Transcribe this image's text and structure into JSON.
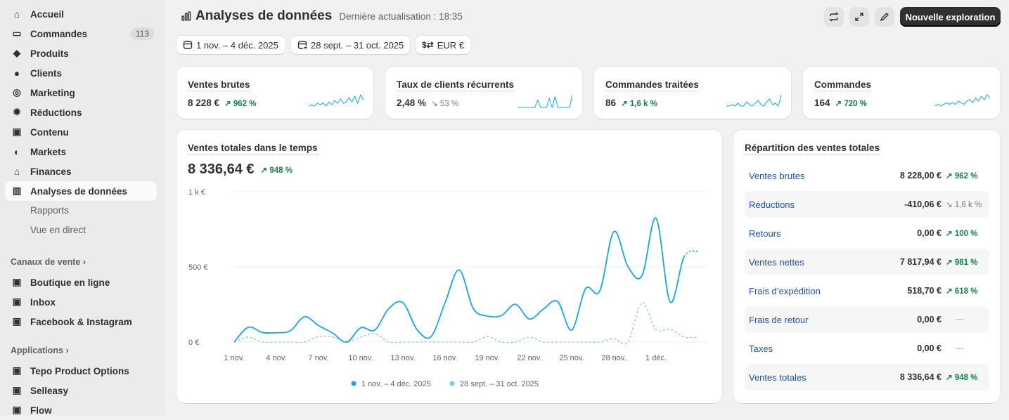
{
  "sidebar": {
    "items": [
      {
        "label": "Accueil",
        "icon": "home-icon"
      },
      {
        "label": "Commandes",
        "icon": "inbox-icon",
        "badge": "113"
      },
      {
        "label": "Produits",
        "icon": "tag-icon"
      },
      {
        "label": "Clients",
        "icon": "person-icon"
      },
      {
        "label": "Marketing",
        "icon": "target-icon"
      },
      {
        "label": "Réductions",
        "icon": "discount-icon"
      },
      {
        "label": "Contenu",
        "icon": "content-icon"
      },
      {
        "label": "Markets",
        "icon": "globe-icon"
      },
      {
        "label": "Finances",
        "icon": "bank-icon"
      },
      {
        "label": "Analyses de données",
        "icon": "chart-icon",
        "active": true
      }
    ],
    "subitems": [
      "Rapports",
      "Vue en direct"
    ],
    "sales_channels": {
      "title": "Canaux de vente",
      "items": [
        "Boutique en ligne",
        "Inbox",
        "Facebook & Instagram"
      ]
    },
    "apps": {
      "title": "Applications",
      "items": [
        "Tepo Product Options",
        "Selleasy",
        "Flow"
      ]
    }
  },
  "header": {
    "title": "Analyses de données",
    "updated": "Dernière actualisation : 18:35",
    "new_button": "Nouvelle exploration"
  },
  "filters": {
    "date": "1 nov. – 4 déc. 2025",
    "compare": "28 sept. – 31 oct. 2025",
    "currency": "EUR €"
  },
  "kpis": [
    {
      "title": "Ventes brutes",
      "value": "8 228 €",
      "change": "962 %",
      "trend": "up",
      "sparkline": [
        1,
        2,
        1,
        3,
        2,
        3,
        1,
        4,
        2,
        5,
        3,
        6,
        3,
        4,
        7,
        4,
        8,
        3,
        9,
        5
      ]
    },
    {
      "title": "Taux de clients récurrents",
      "value": "2,48 %",
      "change": "53 %",
      "trend": "down",
      "sparkline": [
        0,
        0,
        0,
        0,
        0,
        0,
        0,
        4,
        0,
        0,
        0,
        5,
        0,
        6,
        0,
        0,
        0,
        0,
        0,
        7
      ]
    },
    {
      "title": "Commandes traitées",
      "value": "86",
      "change": "1,6 k %",
      "trend": "up",
      "sparkline": [
        1,
        1,
        2,
        1,
        3,
        1,
        1,
        4,
        2,
        1,
        3,
        5,
        2,
        1,
        4,
        6,
        2,
        3,
        1,
        9
      ]
    },
    {
      "title": "Commandes",
      "value": "164",
      "change": "720 %",
      "trend": "up",
      "sparkline": [
        1,
        2,
        1,
        2,
        3,
        2,
        3,
        2,
        4,
        3,
        2,
        4,
        5,
        3,
        6,
        4,
        7,
        5,
        8,
        6
      ]
    }
  ],
  "colors": {
    "current": "#1ba5d8",
    "previous": "#7ec8e8",
    "link": "#1f5199",
    "positive": "#108043"
  },
  "chart_data": {
    "type": "line",
    "title": "Ventes totales dans le temps",
    "total": "8 336,64 €",
    "change": "948 %",
    "y_ticks": [
      "0 €",
      "500 €",
      "1 k €"
    ],
    "ylim": [
      0,
      1000
    ],
    "x_ticks": [
      "1 nov.",
      "4 nov.",
      "7 nov.",
      "10 nov.",
      "13 nov.",
      "16 nov.",
      "19 nov.",
      "22 nov.",
      "25 nov.",
      "28 nov.",
      "1 déc."
    ],
    "grid": true,
    "legend_position": "bottom",
    "series": [
      {
        "name": "1 nov. – 4 déc. 2025",
        "values": [
          0,
          98,
          64,
          62,
          75,
          168,
          110,
          60,
          0,
          95,
          80,
          223,
          262,
          83,
          36,
          262,
          480,
          223,
          173,
          176,
          251,
          153,
          220,
          270,
          80,
          356,
          340,
          735,
          503,
          441,
          824,
          267,
          569,
          605
        ]
      },
      {
        "name": "28 sept. – 31 oct. 2025",
        "values": [
          0,
          33,
          0,
          0,
          0,
          0,
          36,
          33,
          0,
          33,
          55,
          0,
          0,
          0,
          0,
          0,
          0,
          0,
          36,
          0,
          0,
          33,
          0,
          0,
          0,
          0,
          0,
          23,
          0,
          262,
          83,
          86,
          33,
          33
        ]
      }
    ]
  },
  "breakdown": {
    "title": "Répartition des ventes totales",
    "rows": [
      {
        "label": "Ventes brutes",
        "value": "8 228,00 €",
        "change": "962 %",
        "trend": "up"
      },
      {
        "label": "Réductions",
        "value": "-410,06 €",
        "change": "1,8 k %",
        "trend": "down"
      },
      {
        "label": "Retours",
        "value": "0,00 €",
        "change": "100 %",
        "trend": "up"
      },
      {
        "label": "Ventes nettes",
        "value": "7 817,94 €",
        "change": "981 %",
        "trend": "up"
      },
      {
        "label": "Frais d’expédition",
        "value": "518,70 €",
        "change": "618 %",
        "trend": "up"
      },
      {
        "label": "Frais de retour",
        "value": "0,00 €",
        "change": "—",
        "trend": "none"
      },
      {
        "label": "Taxes",
        "value": "0,00 €",
        "change": "—",
        "trend": "none"
      },
      {
        "label": "Ventes totales",
        "value": "8 336,64 €",
        "change": "948 %",
        "trend": "up"
      }
    ]
  }
}
